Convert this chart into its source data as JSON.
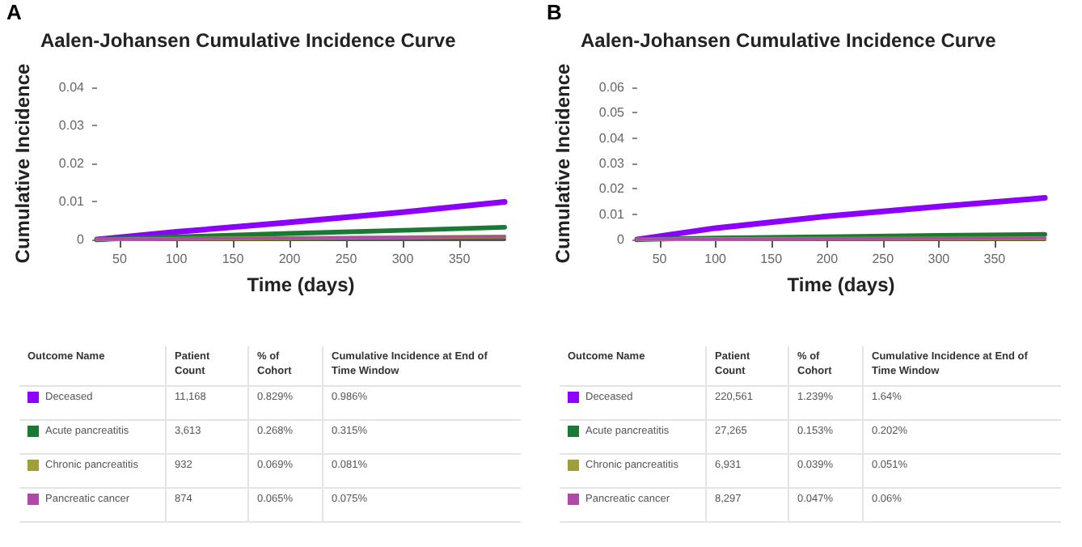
{
  "chart_data": [
    {
      "type": "line",
      "title": "Aalen-Johansen Cumulative Incidence Curve",
      "xlabel": "Time (days)",
      "ylabel": "Cumulative Incidence",
      "legend": "bottom",
      "xlim": [
        30,
        390
      ],
      "xticks": [
        50,
        100,
        150,
        200,
        250,
        300,
        350
      ],
      "ylim": [
        0,
        0.04
      ],
      "yticks": [
        0,
        0.01,
        0.02,
        0.03,
        0.04
      ],
      "x": [
        30,
        100,
        200,
        300,
        390
      ],
      "annotations": [
        "A",
        "Outcome Name",
        "Patient Count",
        "% of Cohort",
        "Cumulative Incidence at End of Time Window",
        "11,168",
        "0.829%",
        "0.986%",
        "3,613",
        "0.268%",
        "0.315%",
        "932",
        "0.069%",
        "0.081%",
        "874",
        "0.065%",
        "0.075%"
      ],
      "series": [
        {
          "name": "Deceased",
          "color": "#8b00ff",
          "values": [
            0,
            0.002,
            0.0045,
            0.0072,
            0.0099
          ]
        },
        {
          "name": "Acute pancreatitis",
          "color": "#1a7a35",
          "values": [
            0,
            0.0007,
            0.0016,
            0.0024,
            0.0032
          ]
        },
        {
          "name": "Chronic pancreatitis",
          "color": "#a0a03a",
          "values": [
            0,
            0.0002,
            0.0004,
            0.0006,
            0.0008
          ]
        },
        {
          "name": "Pancreatic cancer",
          "color": "#b04aa8",
          "values": [
            0,
            0.0002,
            0.0004,
            0.0006,
            0.0008
          ]
        }
      ]
    },
    {
      "type": "line",
      "title": "Aalen-Johansen Cumulative Incidence Curve",
      "xlabel": "Time (days)",
      "ylabel": "Cumulative Incidence",
      "legend": "bottom",
      "xlim": [
        30,
        395
      ],
      "xticks": [
        50,
        100,
        150,
        200,
        250,
        300,
        350
      ],
      "ylim": [
        0,
        0.06
      ],
      "yticks": [
        0,
        0.01,
        0.02,
        0.03,
        0.04,
        0.05,
        0.06
      ],
      "x": [
        30,
        100,
        200,
        300,
        395
      ],
      "annotations": [
        "B",
        "Outcome Name",
        "Patient Count",
        "% of Cohort",
        "Cumulative Incidence at End of Time Window",
        "220,561",
        "1.239%",
        "1.64%",
        "27,265",
        "0.153%",
        "0.202%",
        "6,931",
        "0.039%",
        "0.051%",
        "8,297",
        "0.047%",
        "0.06%"
      ],
      "series": [
        {
          "name": "Deceased",
          "color": "#8b00ff",
          "values": [
            0,
            0.0045,
            0.0092,
            0.013,
            0.0164
          ]
        },
        {
          "name": "Acute pancreatitis",
          "color": "#1a7a35",
          "values": [
            0,
            0.0006,
            0.0011,
            0.0016,
            0.002
          ]
        },
        {
          "name": "Chronic pancreatitis",
          "color": "#a0a03a",
          "values": [
            0,
            0.0002,
            0.0003,
            0.0004,
            0.0005
          ]
        },
        {
          "name": "Pancreatic cancer",
          "color": "#b04aa8",
          "values": [
            0,
            0.0002,
            0.0003,
            0.0004,
            0.0006
          ]
        }
      ]
    }
  ]
}
